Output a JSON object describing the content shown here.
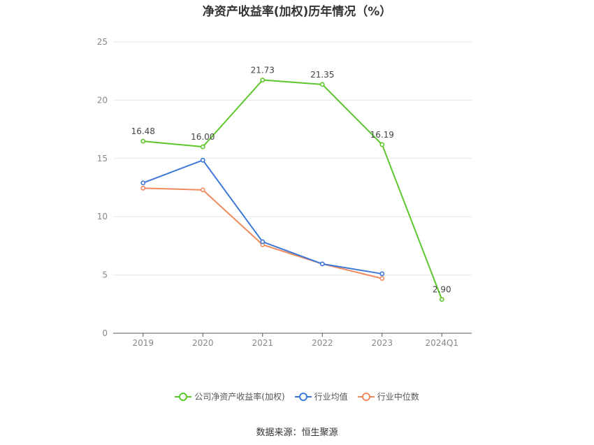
{
  "title": "净资产收益率(加权)历年情况（%）",
  "source": "数据来源：恒生聚源",
  "chart_data": {
    "type": "line",
    "categories": [
      "2019",
      "2020",
      "2021",
      "2022",
      "2023",
      "2024Q1"
    ],
    "ylim": [
      0,
      25
    ],
    "yticks": [
      0,
      5,
      10,
      15,
      20,
      25
    ],
    "grid": true,
    "legend_position": "bottom",
    "series": [
      {
        "name": "公司净资产收益率(加权)",
        "color": "#5cc72a",
        "show_labels": true,
        "values": [
          16.48,
          16.0,
          21.73,
          21.35,
          16.19,
          2.9
        ]
      },
      {
        "name": "行业均值",
        "color": "#3d78d8",
        "show_labels": false,
        "values": [
          12.9,
          14.85,
          7.85,
          5.95,
          5.1,
          null
        ]
      },
      {
        "name": "行业中位数",
        "color": "#f08a5d",
        "show_labels": false,
        "values": [
          12.45,
          12.3,
          7.6,
          5.95,
          4.7,
          null
        ]
      }
    ]
  }
}
